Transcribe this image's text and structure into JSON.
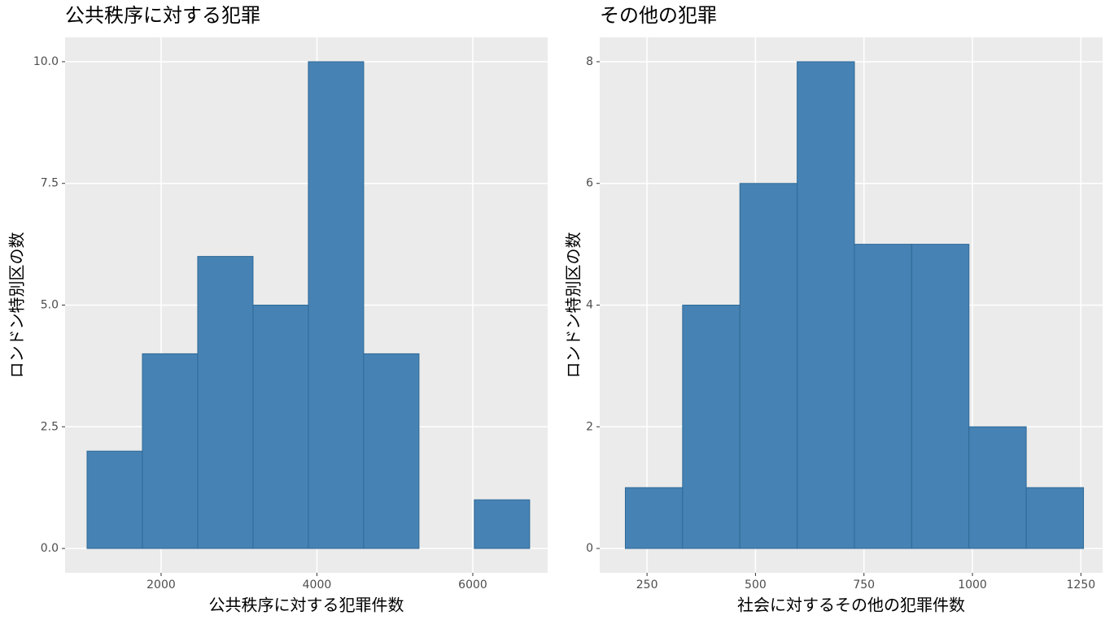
{
  "chart_data": [
    {
      "type": "histogram",
      "title": "公共秩序に対する犯罪",
      "x_label": "公共秩序に対する犯罪件数",
      "y_label": "ロンドン特別区の数",
      "bins": [
        1050,
        1760,
        2470,
        3180,
        3890,
        4600,
        5310,
        6020,
        6730
      ],
      "values": [
        2,
        4,
        6,
        5,
        10,
        4,
        0,
        1
      ],
      "color": "#4682b4",
      "xlim": [
        768,
        6961
      ],
      "ylim": [
        -0.5,
        10.5
      ],
      "xticks": [
        2000,
        4000,
        6000
      ],
      "yticks": [
        {
          "value": 0,
          "label": "0.0"
        },
        {
          "value": 2.5,
          "label": "2.5"
        },
        {
          "value": 5,
          "label": "5.0"
        },
        {
          "value": 7.5,
          "label": "7.5"
        },
        {
          "value": 10,
          "label": "10.0"
        }
      ],
      "grid": true
    },
    {
      "type": "histogram",
      "title": "その他の犯罪",
      "x_label": "社会に対するその他の犯罪件数",
      "y_label": "ロンドン特別区の数",
      "bins": [
        200,
        332,
        464,
        596,
        728,
        860,
        992,
        1124,
        1256
      ],
      "values": [
        1,
        4,
        6,
        8,
        5,
        5,
        2,
        1
      ],
      "color": "#4682b4",
      "xlim": [
        141,
        1300
      ],
      "ylim": [
        -0.4,
        8.4
      ],
      "xticks": [
        250,
        500,
        750,
        1000,
        1250
      ],
      "yticks": [
        0,
        2,
        4,
        6,
        8
      ],
      "grid": true
    }
  ]
}
